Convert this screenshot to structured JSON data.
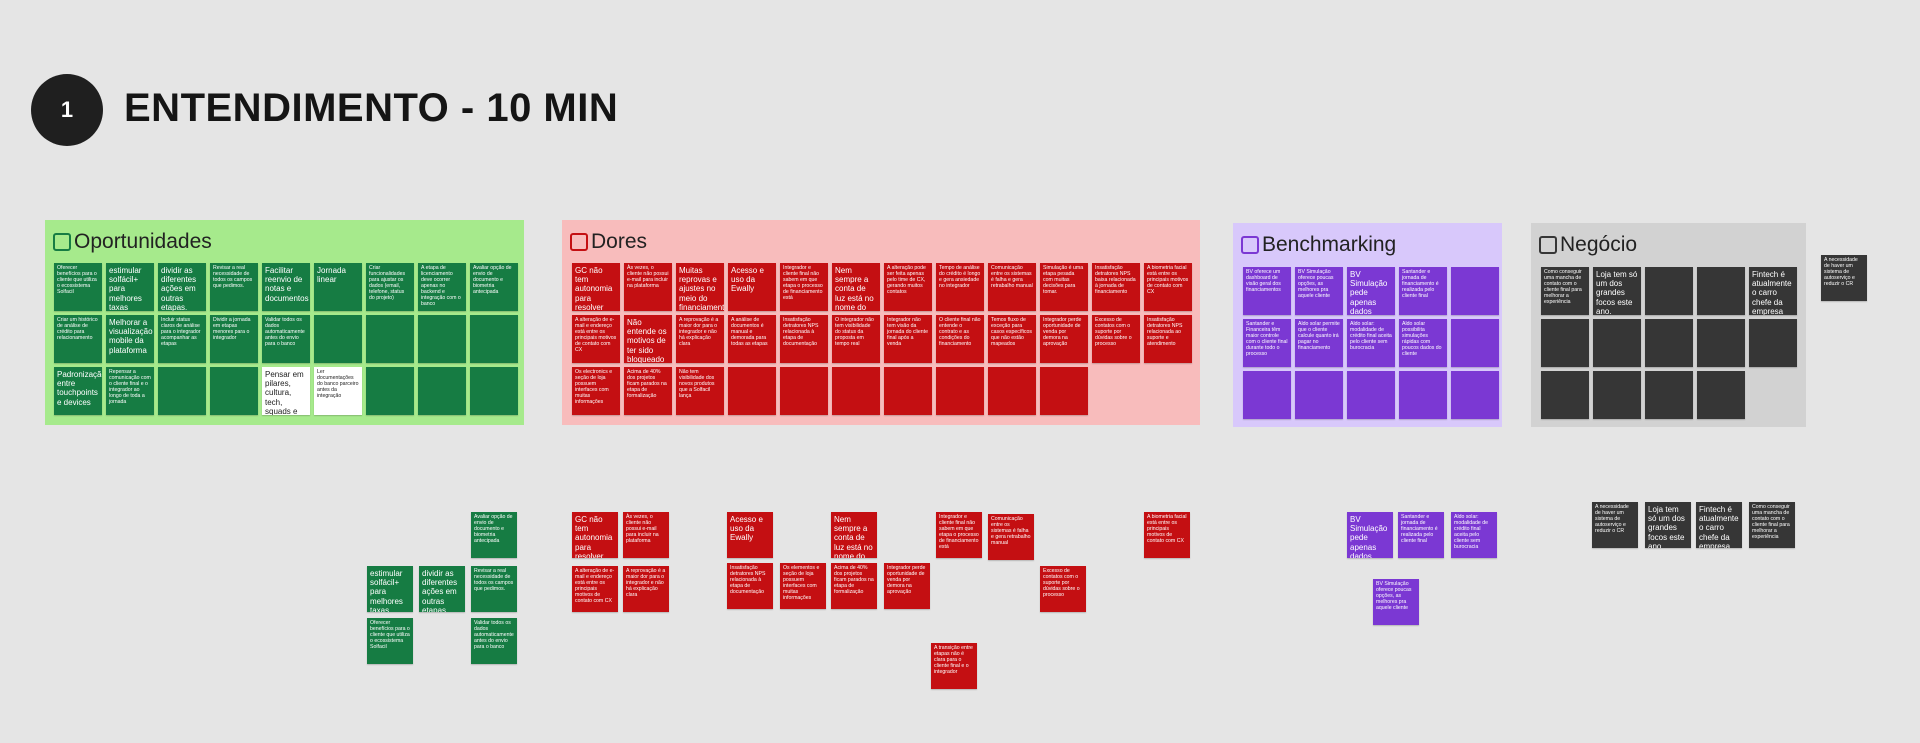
{
  "header": {
    "step": "1",
    "title": "ENTENDIMENTO - 10 MIN"
  },
  "frames": [
    {
      "title": "Oportunidades",
      "notes": [
        "Oferecer benefícios para o cliente que utiliza o ecossistema Solfacil",
        "estimular solfácil+ para melhores taxas",
        "dividir as diferentes ações em outras etapas.",
        "Revisar a real necessidade de todos os campos que pedimos.",
        "Facilitar reenvio de notas e documentos",
        "Jornada linear",
        "Criar funcionalidades para ajustar os dados (email, telefone, status do projeto)",
        "A etapa de licenciamento deve ocorrer apenas no backend e integração com o banco",
        "Avaliar opção de envio de documento e biometria antecipada",
        "Criar um histórico de análise de crédito para relacionamento",
        "Melhorar a visualização mobile da plataforma",
        "Incluir status claros de análise para o integrador acompanhar as etapas",
        "Dividir a jornada em etapas menores para o integrador",
        "Validar todos os dados automaticamente antes do envio para o banco",
        null,
        null,
        null,
        null,
        "Padronização entre touchpoints e devices",
        "Repensar a comunicação com o cliente final e o integrador ao longo de toda a jornada",
        null,
        null,
        "Pensar em pilares, cultura, tech, squads e tribo",
        "Ler documentações do banco parceiro antes da integração",
        null,
        null,
        null
      ]
    },
    {
      "title": "Dores",
      "notes": [
        "GC não tem autonomia para resolver alguns problemas",
        "Às vezes, o cliente não possui e-mail para incluir na plataforma",
        "Muitas reprovas e ajustes no meio do financiamento",
        "Acesso e uso da Ewally",
        "Integrador e cliente final não sabem em que etapa o processo de financiamento está",
        "Nem sempre a conta de luz está no nome do cliente",
        "A alteração pode ser feita apenas pelo time de CX, gerando muitos contatos",
        "Tempo de análise do crédito é longo e gera ansiedade no integrador",
        "Comunicação entre os sistemas é falha e gera retrabalho manual",
        "Simulação é uma etapa pesada com muitas decisões para tomar.",
        "Insatisfação detratores NPS baixa relacionada à jornada de financiamento",
        "A biometria facial está entre os principais motivos de contato com CX",
        "A alteração de e-mail e endereço está entre os principais motivos de contato com CX",
        "Não entende os motivos de ter sido bloqueado",
        "A reprovação é a maior dor para o integrador e não há explicação clara",
        "A análise de documentos é manual e demorada para todas as etapas",
        "Insatisfação detratores NPS relacionada à etapa de documentação",
        "O integrador não tem visibilidade do status da proposta em tempo real",
        "Integrador não tem visão da jornada do cliente final após a venda",
        "O cliente final não entende o contrato e as condições do financiamento",
        "Temos fluxo de exceção para casos específicos que não estão mapeados",
        "Integrador perde oportunidade de venda por demora na aprovação",
        "Excesso de contatos com o suporte por dúvidas sobre o processo",
        "Insatisfação detratores NPS relacionada ao suporte e atendimento",
        "Os electronics e seção de loja possuem interfaces com muitas informações",
        "Acima de 40% dos projetos ficam parados na etapa de formalização",
        "Não tem visibilidade dos novos produtos que a Solfacil lança",
        null,
        null,
        null,
        null,
        null,
        null,
        null
      ]
    },
    {
      "title": "Benchmarking",
      "notes": [
        "BV oferece um dashboard de visão geral dos financiamentos",
        "BV Simulação oferece poucas opções, as melhores pra aquele cliente",
        "BV Simulação pede apenas dados pessoais e endereço",
        "Santander e jornada de financiamento é realizada pelo cliente final",
        null,
        "Santander e Financeira têm maior controle com o cliente final durante todo o processo",
        "Aldo solar permite que o cliente calcule quanto irá pagar no financiamento",
        "Aldo solar: modalidade de crédito final aceita pelo cliente sem burocracia",
        "Aldo solar possibilita simulações rápidas com poucos dados do cliente",
        null,
        null,
        null,
        null,
        null,
        null
      ]
    },
    {
      "title": "Negócio",
      "notes": [
        "Como conseguir uma mancha de contato com o cliente final para melhorar a experiência",
        "Loja tem só um dos grandes focos este ano.",
        null,
        null,
        "Fintech é atualmente o carro chefe da empresa",
        null,
        null,
        null,
        null,
        null,
        null,
        null,
        null,
        null
      ]
    }
  ],
  "loose_notes": [
    "A necessidade de haver um sistema de autoserviço e reduzir o CR",
    "Avaliar opção de envio de documento e biometria antecipada",
    "estimular solfácil+ para melhores taxas",
    "dividir as diferentes ações em outras etapas.",
    "Revisar a real necessidade de todos os campos que pedimos.",
    "Oferecer benefícios para o cliente que utiliza o ecossistema Solfacil",
    "Validar todos os dados automaticamente antes do envio para o banco",
    "GC não tem autonomia para resolver alguns problemas",
    "Às vezes, o cliente não possui e-mail para incluir na plataforma",
    "Acesso e uso da Ewally",
    "Nem sempre a conta de luz está no nome do cliente",
    "Integrador e cliente final não sabem em que etapa o processo de financiamento está",
    "Comunicação entre os sistemas é falha e gera retrabalho manual",
    "A biometria facial está entre os principais motivos de contato com CX",
    "A alteração de e-mail e endereço está entre os principais motivos de contato com CX",
    "A reprovação é a maior dor para o integrador e não há explicação clara",
    "Insatisfação detratores NPS relacionada à etapa de documentação",
    "Os elementos e seção de loja possuem interfaces com muitas informações",
    "Acima de 40% dos projetos ficam parados na etapa de formalização",
    "Integrador perde oportunidade de venda por demora na aprovação",
    "Excesso de contatos com o suporte por dúvidas sobre o processo",
    "A transição entre etapas não é clara para o cliente final e o integrador",
    "BV Simulação pede apenas dados pessoais e endereço",
    "Santander e jornada de financiamento é realizada pelo cliente final",
    "Aldo solar: modalidade de crédito final aceita pelo cliente sem burocracia",
    "BV Simulação oferece poucas opções, as melhores pra aquele cliente",
    "A necessidade de haver um sistema de autoserviço e reduzir o CR",
    "Loja tem só um dos grandes focos este ano.",
    "Fintech é atualmente o carro chefe da empresa",
    "Como conseguir uma mancha de contato com o cliente final para melhorar a experiência"
  ]
}
